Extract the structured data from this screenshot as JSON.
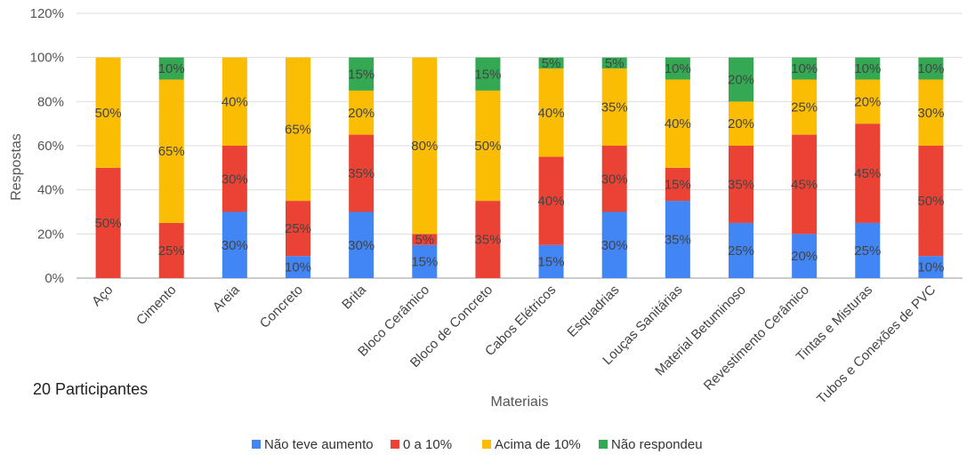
{
  "chart_data": {
    "type": "bar",
    "stacked": true,
    "categories": [
      "Aço",
      "Cimento",
      "Areia",
      "Concreto",
      "Brita",
      "Bloco Cerâmico",
      "Bloco de Concreto",
      "Cabos Elétricos",
      "Esquadrias",
      "Louças Sanitárias",
      "Material Betuminoso",
      "Revestimento Cerâmico",
      "Tintas e Misturas",
      "Tubos e Conexões de PVC"
    ],
    "series": [
      {
        "name": "Não teve aumento",
        "color": "#4285f4",
        "values": [
          0,
          0,
          30,
          10,
          30,
          15,
          0,
          15,
          30,
          35,
          25,
          20,
          25,
          10
        ],
        "labels": [
          "",
          "",
          "30%",
          "10%",
          "30%",
          "15%",
          "",
          "15%",
          "30%",
          "35%",
          "25%",
          "20%",
          "25%",
          "10%"
        ]
      },
      {
        "name": "0 a 10%",
        "color": "#ea4335",
        "values": [
          50,
          25,
          30,
          25,
          35,
          5,
          35,
          40,
          30,
          15,
          35,
          45,
          45,
          50
        ],
        "labels": [
          "50%",
          "25%",
          "30%",
          "25%",
          "35%",
          "5%",
          "35%",
          "40%",
          "30%",
          "15%",
          "35%",
          "45%",
          "45%",
          "50%"
        ]
      },
      {
        "name": "Acima de 10%",
        "color": "#fbbc04",
        "values": [
          50,
          65,
          40,
          65,
          20,
          80,
          50,
          40,
          35,
          40,
          20,
          25,
          20,
          30
        ],
        "labels": [
          "50%",
          "65%",
          "40%",
          "65%",
          "20%",
          "80%",
          "50%",
          "40%",
          "35%",
          "40%",
          "20%",
          "25%",
          "20%",
          "30%"
        ]
      },
      {
        "name": "Não respondeu",
        "color": "#34a853",
        "values": [
          0,
          10,
          0,
          0,
          15,
          0,
          15,
          5,
          5,
          10,
          20,
          10,
          10,
          10
        ],
        "labels": [
          "",
          "10%",
          "",
          "",
          "15%",
          "",
          "15%",
          "5%",
          "5%",
          "10%",
          "20%",
          "10%",
          "10%",
          "10%"
        ]
      }
    ],
    "ylim": [
      0,
      120
    ],
    "yticks": [
      0,
      20,
      40,
      60,
      80,
      100,
      120
    ],
    "ytick_labels": [
      "0%",
      "20%",
      "40%",
      "60%",
      "80%",
      "100%",
      "120%"
    ],
    "xlabel": "Materiais",
    "ylabel": "Respostas",
    "grid": true,
    "legend_position": "bottom"
  },
  "annotation": "20 Participantes"
}
